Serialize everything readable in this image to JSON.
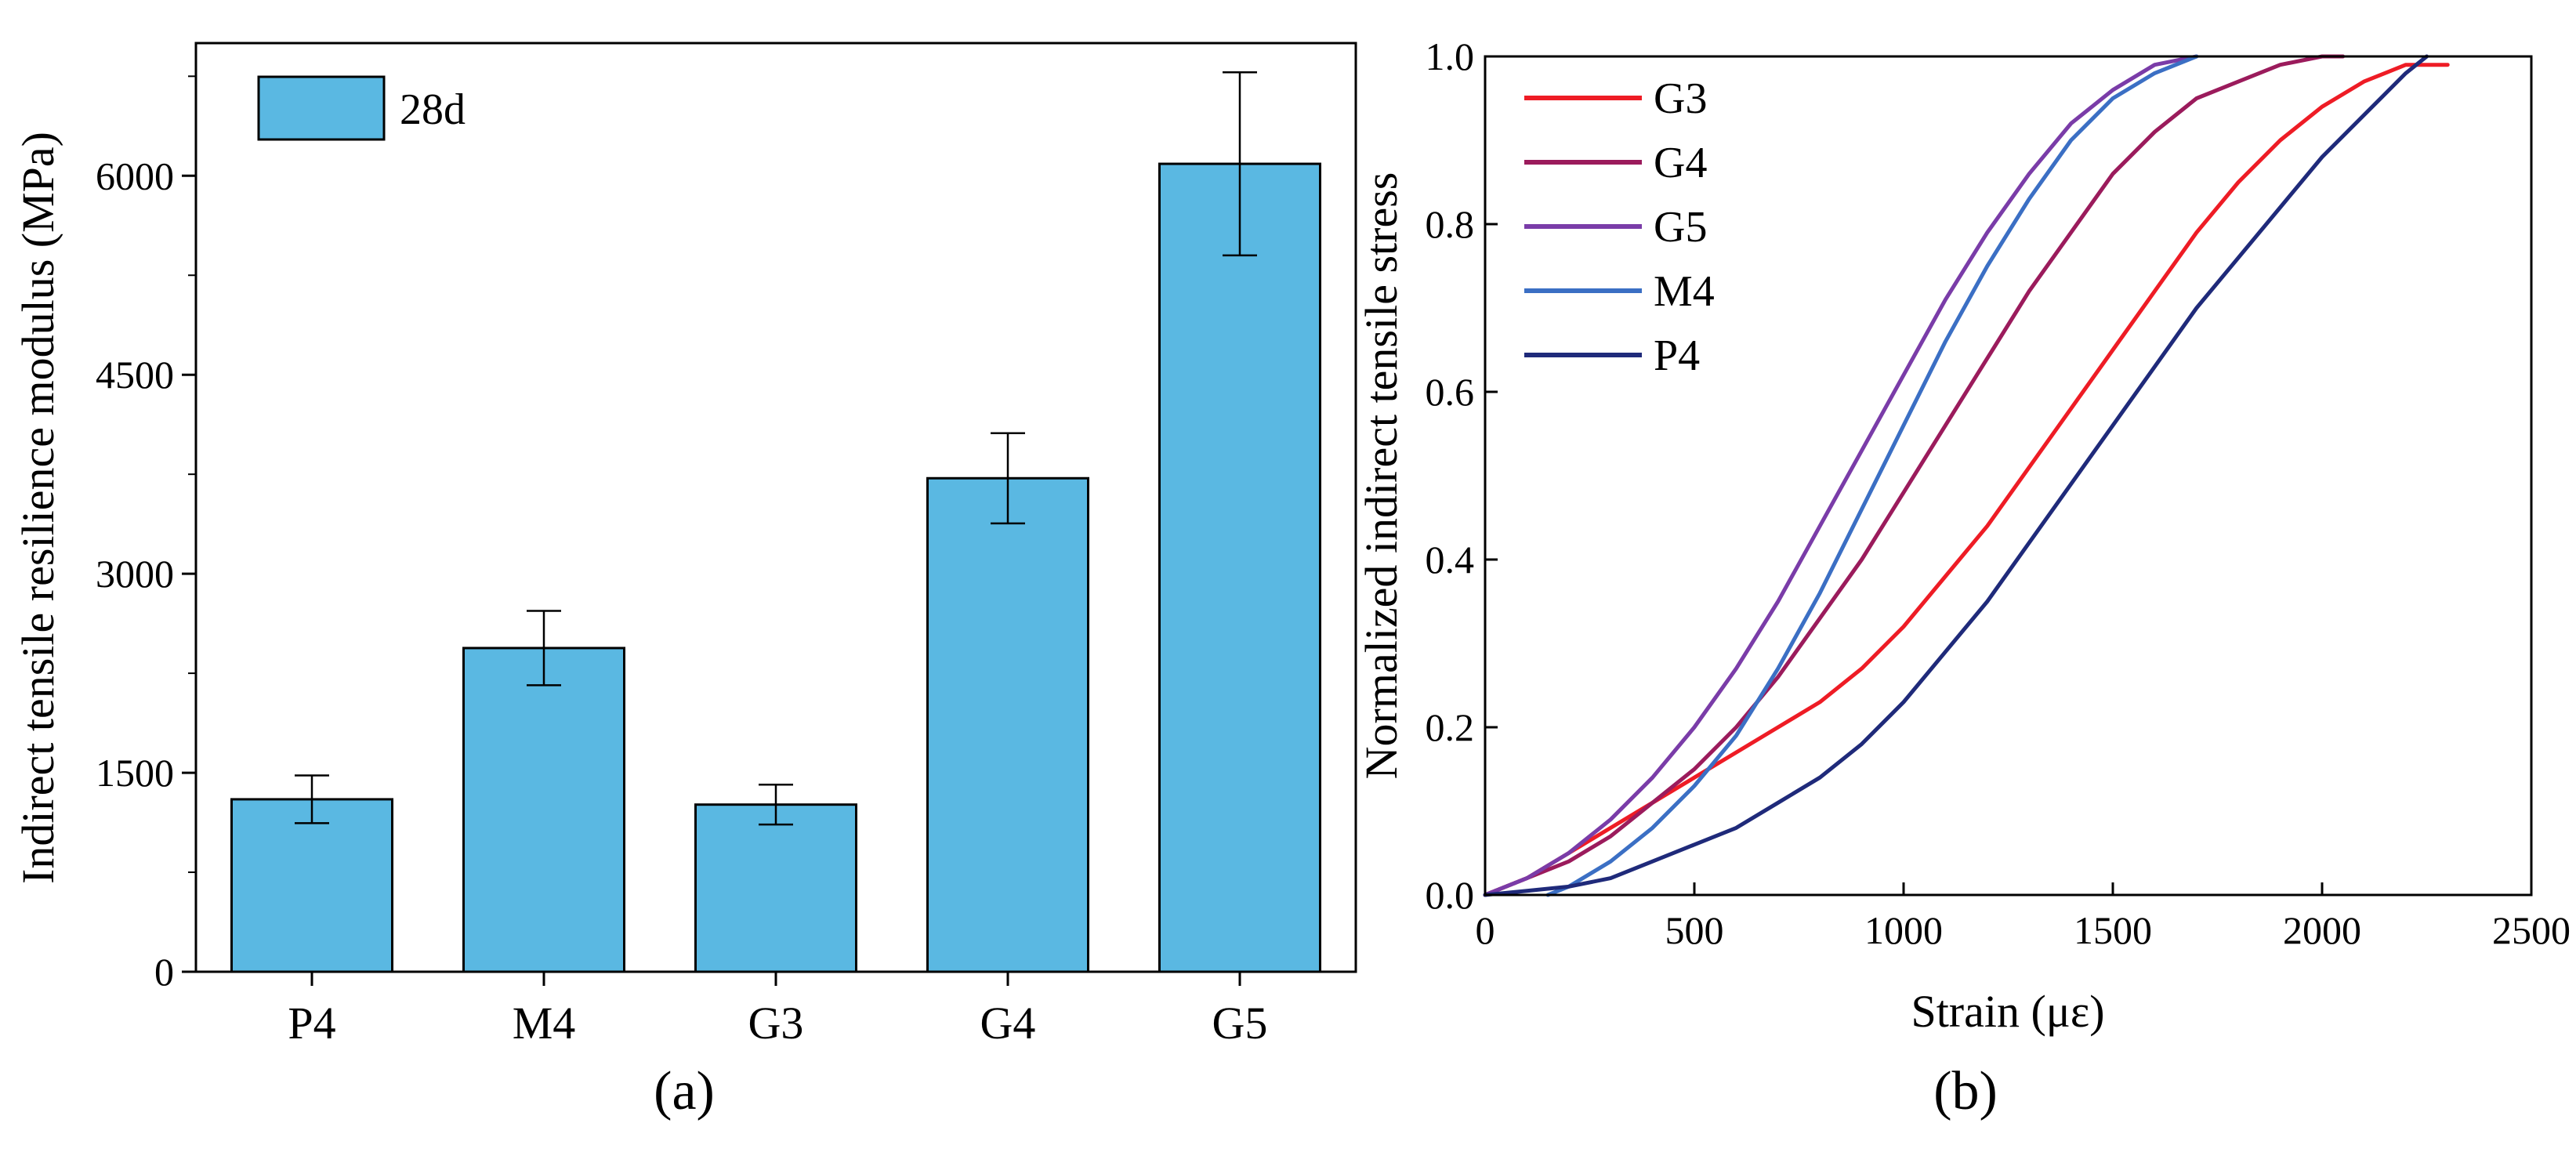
{
  "chart_data": [
    {
      "type": "bar",
      "panel_label": "(a)",
      "categories": [
        "P4",
        "M4",
        "G3",
        "G4",
        "G5"
      ],
      "series": [
        {
          "name": "28d",
          "values": [
            1300,
            2440,
            1260,
            3720,
            6090
          ],
          "errors": [
            180,
            280,
            150,
            340,
            690
          ]
        }
      ],
      "ylabel": "Indirect tensile resilience modulus (MPa)",
      "xlabel": "",
      "ylim": [
        0,
        7000
      ],
      "yticks": [
        0,
        1500,
        3000,
        4500,
        6000
      ],
      "legend": {
        "position": "top-left",
        "entries": [
          "28d"
        ]
      },
      "bar_color": "#5ab8e2"
    },
    {
      "type": "line",
      "panel_label": "(b)",
      "xlabel": "Strain (με)",
      "ylabel": "Normalized indirect tensile stress",
      "xlim": [
        0,
        2500
      ],
      "ylim": [
        0,
        1.0
      ],
      "xticks": [
        0,
        500,
        1000,
        1500,
        2000,
        2500
      ],
      "yticks": [
        0.0,
        0.2,
        0.4,
        0.6,
        0.8,
        1.0
      ],
      "ytick_labels": [
        "0.0",
        "0.2",
        "0.4",
        "0.6",
        "0.8",
        "1.0"
      ],
      "legend": {
        "position": "top-left",
        "entries": [
          "G3",
          "G4",
          "G5",
          "M4",
          "P4"
        ]
      },
      "series": [
        {
          "name": "G3",
          "color": "#ee1c25",
          "x": [
            0,
            100,
            200,
            300,
            400,
            500,
            600,
            700,
            800,
            900,
            1000,
            1100,
            1200,
            1300,
            1400,
            1500,
            1600,
            1700,
            1800,
            1900,
            2000,
            2100,
            2200,
            2300
          ],
          "y": [
            0,
            0.02,
            0.05,
            0.08,
            0.11,
            0.14,
            0.17,
            0.2,
            0.23,
            0.27,
            0.32,
            0.38,
            0.44,
            0.51,
            0.58,
            0.65,
            0.72,
            0.79,
            0.85,
            0.9,
            0.94,
            0.97,
            0.99,
            0.99
          ]
        },
        {
          "name": "G4",
          "color": "#9b1b5c",
          "x": [
            0,
            100,
            200,
            300,
            400,
            500,
            600,
            700,
            800,
            900,
            1000,
            1100,
            1200,
            1300,
            1400,
            1500,
            1600,
            1700,
            1800,
            1900,
            2000,
            2050
          ],
          "y": [
            0,
            0.02,
            0.04,
            0.07,
            0.11,
            0.15,
            0.2,
            0.26,
            0.33,
            0.4,
            0.48,
            0.56,
            0.64,
            0.72,
            0.79,
            0.86,
            0.91,
            0.95,
            0.97,
            0.99,
            1.0,
            1.0
          ]
        },
        {
          "name": "G5",
          "color": "#7a3ca8",
          "x": [
            0,
            100,
            200,
            300,
            400,
            500,
            600,
            700,
            800,
            900,
            1000,
            1100,
            1200,
            1300,
            1400,
            1500,
            1600,
            1700
          ],
          "y": [
            0,
            0.02,
            0.05,
            0.09,
            0.14,
            0.2,
            0.27,
            0.35,
            0.44,
            0.53,
            0.62,
            0.71,
            0.79,
            0.86,
            0.92,
            0.96,
            0.99,
            1.0
          ]
        },
        {
          "name": "M4",
          "color": "#3b6fc4",
          "x": [
            150,
            200,
            300,
            400,
            500,
            600,
            700,
            800,
            900,
            1000,
            1100,
            1200,
            1300,
            1400,
            1500,
            1600,
            1700
          ],
          "y": [
            0,
            0.01,
            0.04,
            0.08,
            0.13,
            0.19,
            0.27,
            0.36,
            0.46,
            0.56,
            0.66,
            0.75,
            0.83,
            0.9,
            0.95,
            0.98,
            1.0
          ]
        },
        {
          "name": "P4",
          "color": "#1f2a7a",
          "x": [
            0,
            100,
            200,
            300,
            400,
            500,
            600,
            700,
            800,
            900,
            1000,
            1100,
            1200,
            1300,
            1400,
            1500,
            1600,
            1700,
            1800,
            1900,
            2000,
            2100,
            2200,
            2250
          ],
          "y": [
            0,
            0.005,
            0.01,
            0.02,
            0.04,
            0.06,
            0.08,
            0.11,
            0.14,
            0.18,
            0.23,
            0.29,
            0.35,
            0.42,
            0.49,
            0.56,
            0.63,
            0.7,
            0.76,
            0.82,
            0.88,
            0.93,
            0.98,
            1.0
          ]
        }
      ]
    }
  ]
}
